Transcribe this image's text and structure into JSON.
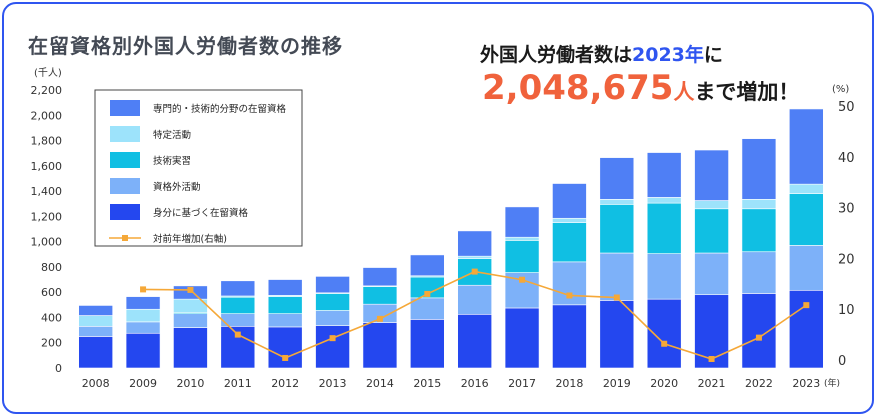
{
  "title": "在留資格別外国人労働者数の推移",
  "headline": {
    "line1_prefix": "外国人労働者数は",
    "line1_year": "2023年",
    "line1_suffix": "に",
    "count": "2,048,675",
    "count_unit": "人",
    "line2_suffix": "まで増加！"
  },
  "colors": {
    "specialist": "#4f7ff5",
    "specified": "#9de3fb",
    "technical_intern": "#10bfe3",
    "non_status": "#7db1f9",
    "status_based": "#2447ef",
    "line": "#f5a838",
    "border": "#2f55f0"
  },
  "chart_data": {
    "type": "bar",
    "stacked": true,
    "categories": [
      "2008",
      "2009",
      "2010",
      "2011",
      "2012",
      "2013",
      "2014",
      "2015",
      "2016",
      "2017",
      "2018",
      "2019",
      "2020",
      "2021",
      "2022",
      "2023"
    ],
    "xlabel_unit": "(年)",
    "left_axis": {
      "unit": "(千人)",
      "ylim": [
        0,
        2200
      ],
      "ticks": [
        "0",
        "200",
        "400",
        "600",
        "800",
        "1,000",
        "1,200",
        "1,400",
        "1,600",
        "1,800",
        "2,000",
        "2,200"
      ]
    },
    "right_axis": {
      "unit": "(%)",
      "ylim": [
        0,
        50
      ],
      "ticks": [
        "0",
        "10",
        "20",
        "30",
        "40",
        "50"
      ]
    },
    "series": [
      {
        "name": "身分に基づく在留資格",
        "key": "status_based",
        "values": [
          250,
          275,
          320,
          330,
          325,
          335,
          360,
          385,
          425,
          475,
          500,
          535,
          545,
          580,
          590,
          615
        ]
      },
      {
        "name": "資格外活動",
        "key": "non_status",
        "values": [
          80,
          90,
          110,
          100,
          105,
          120,
          145,
          170,
          230,
          280,
          340,
          375,
          360,
          330,
          330,
          355
        ]
      },
      {
        "name": "技術実習",
        "key": "technical_intern",
        "values": [
          0,
          0,
          10,
          130,
          135,
          135,
          140,
          165,
          210,
          255,
          310,
          385,
          400,
          350,
          340,
          410
        ]
      },
      {
        "name": "特定活動",
        "key": "specified",
        "values": [
          85,
          100,
          105,
          10,
          10,
          5,
          5,
          10,
          20,
          25,
          35,
          40,
          45,
          65,
          75,
          75
        ]
      },
      {
        "name": "専門的・技術的分野の在留資格",
        "key": "specialist",
        "values": [
          80,
          100,
          105,
          120,
          125,
          130,
          145,
          165,
          200,
          240,
          275,
          330,
          355,
          400,
          480,
          595
        ]
      }
    ],
    "line_series": {
      "name": "対前年増加(右軸)",
      "key": "line",
      "values": [
        null,
        13.9,
        13.8,
        5.0,
        0.4,
        4.3,
        8.1,
        13.0,
        17.4,
        15.8,
        12.7,
        12.3,
        3.2,
        0.2,
        4.4,
        10.8
      ]
    },
    "legend": {
      "placement": "top-left-inside"
    }
  }
}
